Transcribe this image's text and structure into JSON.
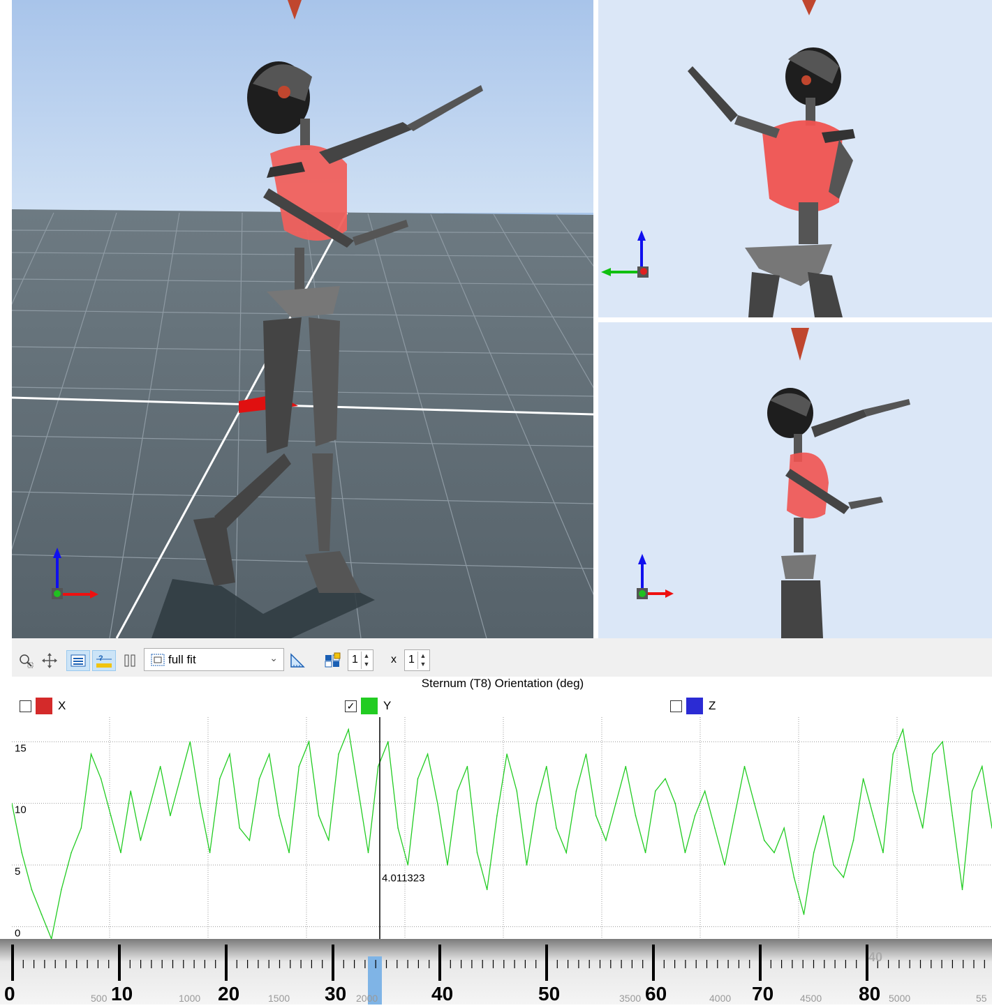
{
  "toolbar": {
    "zoom_mode": "full fit",
    "rows": "1",
    "times": "x",
    "cols": "1"
  },
  "chart_title": "Sternum (T8) Orientation (deg)",
  "legend": [
    {
      "label": "X",
      "color": "#d42a2a",
      "checked": false
    },
    {
      "label": "Y",
      "color": "#22cc22",
      "checked": true
    },
    {
      "label": "Z",
      "color": "#2b2bd4",
      "checked": false
    }
  ],
  "cursor_readout": "4.011323",
  "timeline": {
    "big_ticks": [
      "0",
      "10",
      "20",
      "30",
      "40",
      "50",
      "60",
      "70",
      "80"
    ],
    "small_labels": [
      "500",
      "1000",
      "1500",
      "2000",
      "",
      "",
      "3500",
      "4000",
      "4500",
      "5000",
      "55"
    ],
    "corner_label": "40"
  },
  "chart_data": {
    "type": "line",
    "title": "Sternum (T8) Orientation (deg)",
    "ylim": [
      -1,
      17
    ],
    "yticks": [
      0,
      5,
      10,
      15
    ],
    "xlim": [
      0,
      99
    ],
    "series": [
      {
        "name": "Y",
        "color": "#22cc22",
        "values": [
          10,
          6,
          3,
          1,
          -1,
          3,
          6,
          8,
          14,
          12,
          9,
          6,
          11,
          7,
          10,
          13,
          9,
          12,
          15,
          10,
          6,
          12,
          14,
          8,
          7,
          12,
          14,
          9,
          6,
          13,
          15,
          9,
          7,
          14,
          16,
          11,
          6,
          13,
          15,
          8,
          5,
          12,
          14,
          10,
          5,
          11,
          13,
          6,
          3,
          9,
          14,
          11,
          5,
          10,
          13,
          8,
          6,
          11,
          14,
          9,
          7,
          10,
          13,
          9,
          6,
          11,
          12,
          10,
          6,
          9,
          11,
          8,
          5,
          9,
          13,
          10,
          7,
          6,
          8,
          4,
          1,
          6,
          9,
          5,
          4,
          7,
          12,
          9,
          6,
          14,
          16,
          11,
          8,
          14,
          15,
          9,
          3,
          11,
          13,
          8
        ]
      }
    ]
  }
}
